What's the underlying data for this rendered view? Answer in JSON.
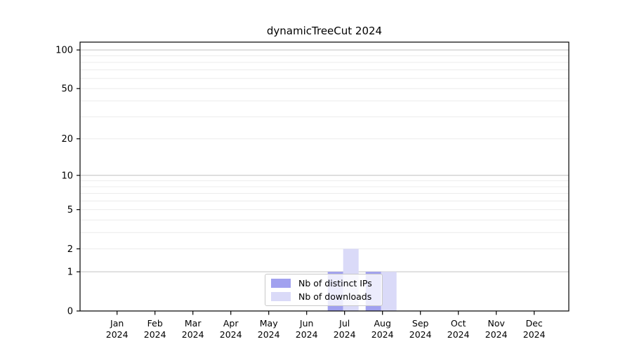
{
  "chart_data": {
    "type": "bar",
    "title": "dynamicTreeCut 2024",
    "xlabel": "",
    "ylabel": "",
    "yscale": "log1p",
    "ylim": [
      0,
      115
    ],
    "grid": true,
    "legend_position": "lower center",
    "y_ticks": [
      0,
      1,
      2,
      5,
      10,
      20,
      50,
      100
    ],
    "grid_major": [
      1,
      10,
      100
    ],
    "grid_minor": [
      2,
      3,
      4,
      5,
      6,
      7,
      8,
      9,
      20,
      30,
      40,
      50,
      60,
      70,
      80,
      90
    ],
    "categories": [
      "Jan",
      "Feb",
      "Mar",
      "Apr",
      "May",
      "Jun",
      "Jul",
      "Aug",
      "Sep",
      "Oct",
      "Nov",
      "Dec"
    ],
    "year_label": "2024",
    "series": [
      {
        "name": "Nb of distinct IPs",
        "color": "#a1a1ef",
        "values": [
          0,
          0,
          0,
          0,
          0,
          0,
          1,
          1,
          0,
          0,
          0,
          0
        ]
      },
      {
        "name": "Nb of downloads",
        "color": "#dadaf8",
        "values": [
          0,
          0,
          0,
          0,
          0,
          0,
          2,
          1,
          0,
          0,
          0,
          0
        ]
      }
    ]
  },
  "colors": {
    "spine": "#000000",
    "tick": "#000000",
    "text": "#000000",
    "grid_major": "#c0c0c0",
    "grid_minor": "#ececec",
    "legend_border": "#c9c9c9",
    "legend_background": "rgba(255,255,255,0.8)"
  }
}
